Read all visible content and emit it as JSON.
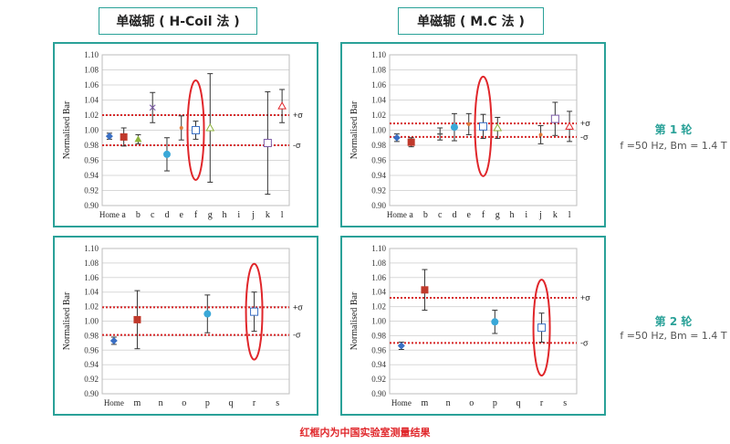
{
  "headers": {
    "left": "单磁轭 ( H-Coil 法 )",
    "right": "单磁轭 ( M.C 法 )"
  },
  "rounds": [
    {
      "label": "第 1 轮",
      "condition": "f =50 Hz, Bm = 1.4 T"
    },
    {
      "label": "第 2 轮",
      "condition": "f =50 Hz, Bm = 1.4 T"
    }
  ],
  "footnote": "红框内为中国实验室测量结果",
  "colors": {
    "accent": "#2aa198",
    "sigma_line": "#d62728",
    "highlight": "#e0262a"
  },
  "chart_data": [
    {
      "id": "round1-hcoil",
      "type": "scatter",
      "ylabel": "Normalised Bar",
      "ylim": [
        0.9,
        1.1
      ],
      "yticks": [
        "0.90",
        "0.92",
        "0.94",
        "0.96",
        "0.98",
        "1.00",
        "1.02",
        "1.04",
        "1.06",
        "1.08",
        "1.10"
      ],
      "categories": [
        "Home",
        "a",
        "b",
        "c",
        "d",
        "e",
        "f",
        "g",
        "h",
        "i",
        "j",
        "k",
        "l"
      ],
      "sigma_upper": 1.02,
      "sigma_lower": 0.98,
      "sigma_labels": {
        "upper": "+σ",
        "lower": "-σ"
      },
      "highlight": "f",
      "points": [
        {
          "cat": "Home",
          "y": 0.992,
          "err": 0.004,
          "marker": "diamond",
          "color": "#3a6fc4"
        },
        {
          "cat": "a",
          "y": 0.991,
          "err": 0.012,
          "marker": "square",
          "color": "#c0392b"
        },
        {
          "cat": "b",
          "y": 0.988,
          "err": 0.006,
          "marker": "triangle",
          "color": "#8db33a"
        },
        {
          "cat": "c",
          "y": 1.03,
          "err": 0.02,
          "marker": "x",
          "color": "#7b5aa6"
        },
        {
          "cat": "d",
          "y": 0.968,
          "err": 0.022,
          "marker": "circle",
          "color": "#3aa8d8"
        },
        {
          "cat": "e",
          "y": 1.003,
          "err": 0.016,
          "marker": "dot",
          "color": "#e07b39"
        },
        {
          "cat": "f",
          "y": 1.0,
          "err": 0.012,
          "marker": "open-square",
          "color": "#3a6fc4"
        },
        {
          "cat": "g",
          "y": 1.003,
          "err": 0.072,
          "marker": "open-triangle",
          "color": "#8db33a"
        },
        {
          "cat": "k",
          "y": 0.983,
          "err": 0.068,
          "marker": "open-square",
          "color": "#7b5aa6"
        },
        {
          "cat": "l",
          "y": 1.032,
          "err": 0.022,
          "marker": "open-triangle",
          "color": "#e0262a"
        }
      ]
    },
    {
      "id": "round1-mc",
      "type": "scatter",
      "ylabel": "Normalised Bar",
      "ylim": [
        0.9,
        1.1
      ],
      "yticks": [
        "0.90",
        "0.92",
        "0.94",
        "0.96",
        "0.98",
        "1.00",
        "1.02",
        "1.04",
        "1.06",
        "1.08",
        "1.10"
      ],
      "categories": [
        "Home",
        "a",
        "b",
        "c",
        "d",
        "e",
        "f",
        "g",
        "h",
        "i",
        "j",
        "k",
        "l"
      ],
      "sigma_upper": 1.009,
      "sigma_lower": 0.991,
      "sigma_labels": {
        "upper": "+σ",
        "lower": "-σ"
      },
      "highlight": "f",
      "points": [
        {
          "cat": "Home",
          "y": 0.99,
          "err": 0.005,
          "marker": "diamond",
          "color": "#3a6fc4"
        },
        {
          "cat": "a",
          "y": 0.984,
          "err": 0.006,
          "marker": "square",
          "color": "#c0392b"
        },
        {
          "cat": "c",
          "y": 0.995,
          "err": 0.008,
          "marker": "dash",
          "color": "#555555"
        },
        {
          "cat": "d",
          "y": 1.004,
          "err": 0.018,
          "marker": "circle",
          "color": "#3aa8d8"
        },
        {
          "cat": "e",
          "y": 1.008,
          "err": 0.014,
          "marker": "dot",
          "color": "#e07b39"
        },
        {
          "cat": "f",
          "y": 1.005,
          "err": 0.016,
          "marker": "open-square",
          "color": "#3a6fc4"
        },
        {
          "cat": "g",
          "y": 1.003,
          "err": 0.014,
          "marker": "open-triangle",
          "color": "#8db33a"
        },
        {
          "cat": "j",
          "y": 0.994,
          "err": 0.012,
          "marker": "dot",
          "color": "#e07b39"
        },
        {
          "cat": "k",
          "y": 1.015,
          "err": 0.022,
          "marker": "open-square",
          "color": "#7b5aa6"
        },
        {
          "cat": "l",
          "y": 1.005,
          "err": 0.02,
          "marker": "open-triangle",
          "color": "#e0262a"
        }
      ]
    },
    {
      "id": "round2-hcoil",
      "type": "scatter",
      "ylabel": "Normalised Bar",
      "ylim": [
        0.9,
        1.1
      ],
      "yticks": [
        "0.90",
        "0.92",
        "0.94",
        "0.96",
        "0.98",
        "1.00",
        "1.02",
        "1.04",
        "1.06",
        "1.08",
        "1.10"
      ],
      "categories": [
        "Home",
        "m",
        "n",
        "o",
        "p",
        "q",
        "r",
        "s"
      ],
      "sigma_upper": 1.019,
      "sigma_lower": 0.981,
      "sigma_labels": {
        "upper": "+σ",
        "lower": "-σ"
      },
      "highlight": "r",
      "points": [
        {
          "cat": "Home",
          "y": 0.973,
          "err": 0.005,
          "marker": "diamond",
          "color": "#3a6fc4"
        },
        {
          "cat": "m",
          "y": 1.002,
          "err": 0.04,
          "marker": "square",
          "color": "#c0392b"
        },
        {
          "cat": "p",
          "y": 1.01,
          "err": 0.026,
          "marker": "circle",
          "color": "#3aa8d8"
        },
        {
          "cat": "r",
          "y": 1.013,
          "err": 0.027,
          "marker": "open-square",
          "color": "#3a6fc4"
        }
      ]
    },
    {
      "id": "round2-mc",
      "type": "scatter",
      "ylabel": "Normalised Bar",
      "ylim": [
        0.9,
        1.1
      ],
      "yticks": [
        "0.90",
        "0.92",
        "0.94",
        "0.96",
        "0.98",
        "1.00",
        "1.02",
        "1.04",
        "1.06",
        "1.08",
        "1.10"
      ],
      "categories": [
        "Home",
        "m",
        "n",
        "o",
        "p",
        "q",
        "r",
        "s"
      ],
      "sigma_upper": 1.032,
      "sigma_lower": 0.97,
      "sigma_labels": {
        "upper": "+σ",
        "lower": "-σ"
      },
      "highlight": "r",
      "points": [
        {
          "cat": "Home",
          "y": 0.966,
          "err": 0.005,
          "marker": "diamond",
          "color": "#3a6fc4"
        },
        {
          "cat": "m",
          "y": 1.043,
          "err": 0.028,
          "marker": "square",
          "color": "#c0392b"
        },
        {
          "cat": "p",
          "y": 0.999,
          "err": 0.016,
          "marker": "circle",
          "color": "#3aa8d8"
        },
        {
          "cat": "r",
          "y": 0.991,
          "err": 0.02,
          "marker": "open-square",
          "color": "#3a6fc4"
        }
      ]
    }
  ]
}
